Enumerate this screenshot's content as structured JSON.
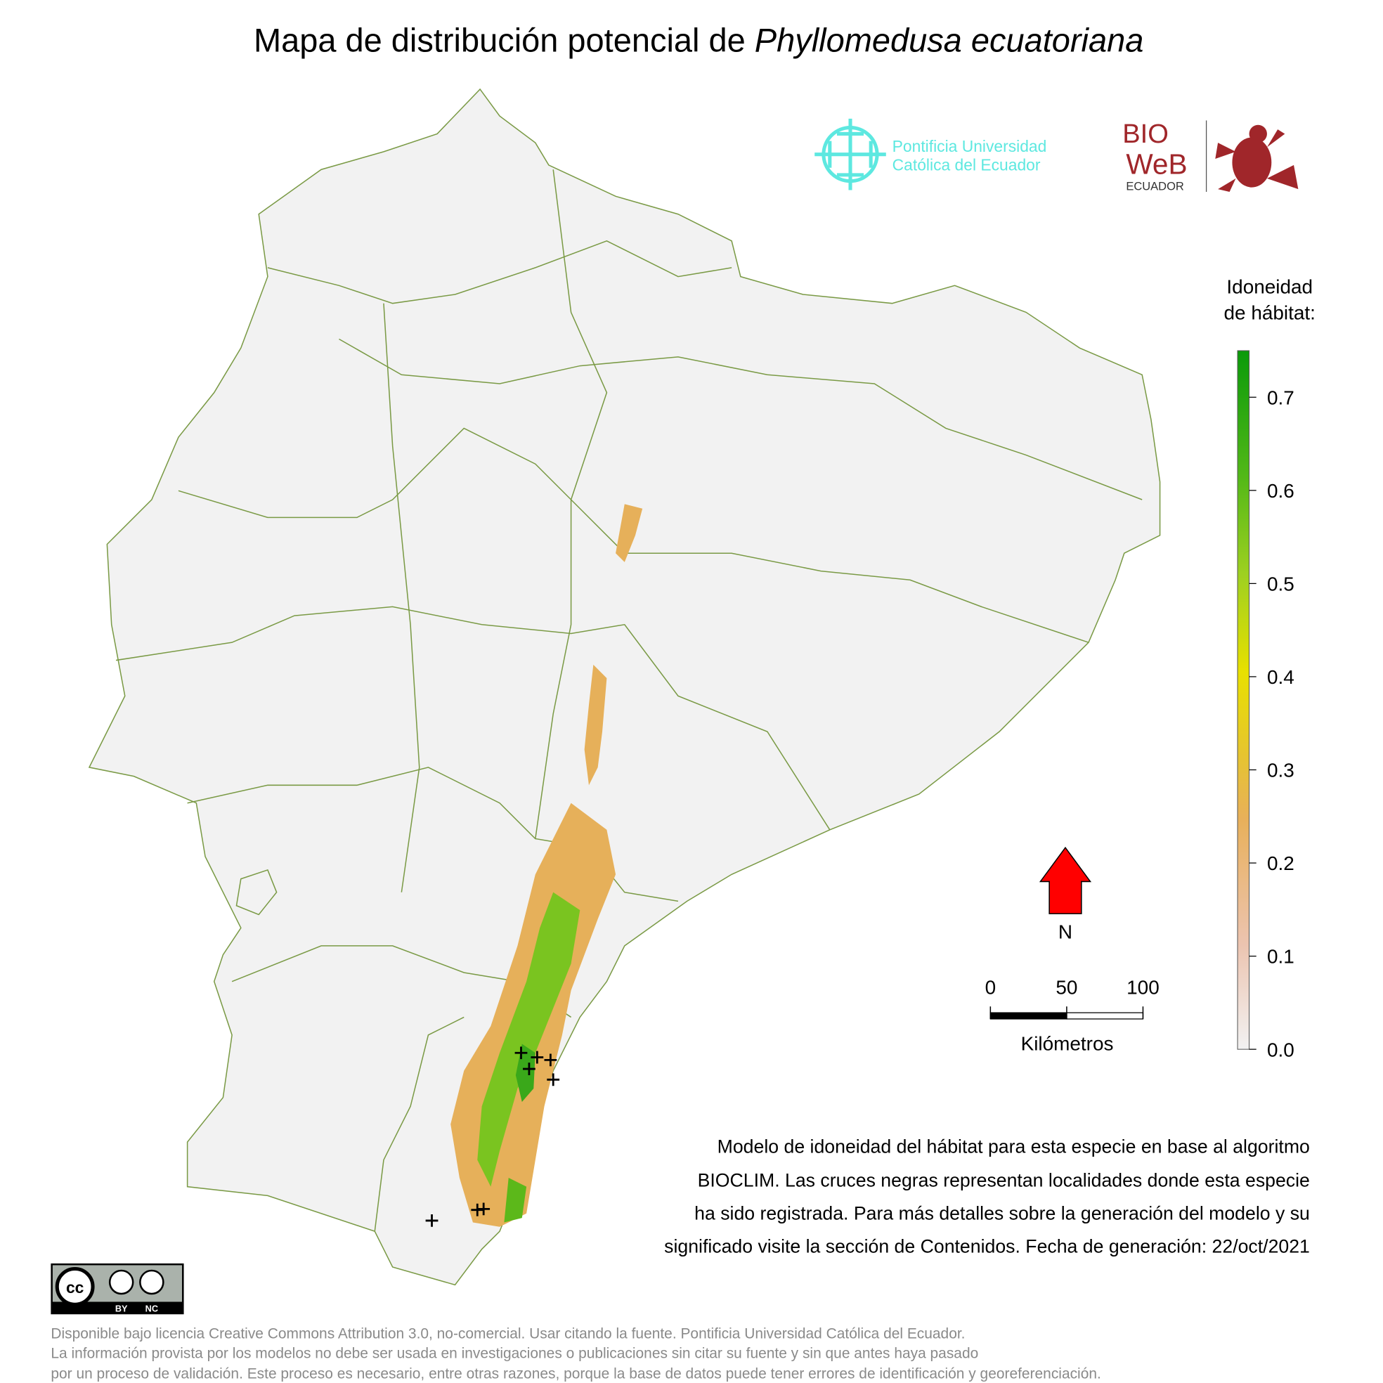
{
  "title": {
    "plain": "Mapa de distribución potencial de ",
    "italic": "Phyllomedusa ecuatoriana"
  },
  "logos": {
    "puce": [
      "Pontificia Universidad",
      "Católica del Ecuador"
    ],
    "bioweb": {
      "bio": "BIO",
      "web": "WeB",
      "sub": "ECUADOR"
    }
  },
  "legend": {
    "title": [
      "Idoneidad",
      "de hábitat:"
    ],
    "lim": [
      0,
      0.75
    ],
    "ticks": [
      {
        "value": 0,
        "label": "0.0"
      },
      0.1,
      0.2,
      0.3,
      0.4,
      0.5,
      0.6,
      0.7
    ]
  },
  "north": "N",
  "scale": {
    "ticks": [
      0,
      50,
      100
    ],
    "label": "Kilómetros"
  },
  "description": [
    "Modelo de idoneidad del hábitat para esta especie en base al algoritmo",
    "BIOCLIM. Las cruces negras representan localidades donde esta especie",
    "ha sido registrada. Para más detalles sobre la generación del modelo y su",
    "significado visite la sección de Contenidos. Fecha de generación: 22/oct/2021"
  ],
  "license": {
    "badge": [
      "BY",
      "NC"
    ],
    "lines": [
      "Disponible bajo licencia Creative Commons Attribution 3.0, no-comercial. Usar citando la fuente. Pontificia Universidad Católica del Ecuador.",
      "La información provista por los modelos no debe ser usada en investigaciones o publicaciones sin citar su fuente y sin que antes haya pasado",
      "por un proceso de validación. Este proceso es necesario, entre otras razones, porque la base de datos puede tener errores de identificación y georeferenciación."
    ]
  }
}
